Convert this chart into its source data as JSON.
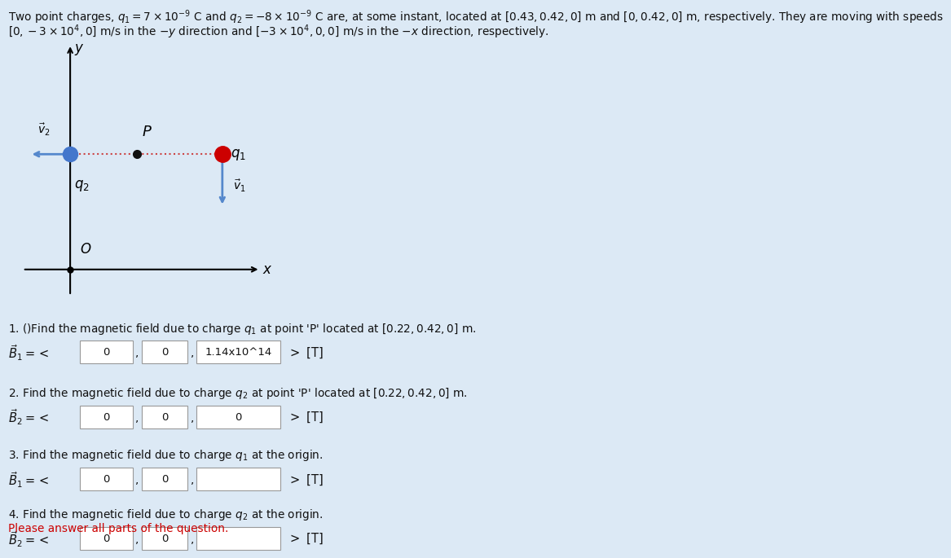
{
  "bg_color": "#dce9f5",
  "diagram_bg": "#ffffff",
  "header_text_line1": "Two point charges, $q_1 =7\\times10^{-9}$ C and $q_2 = -8\\times10^{-9}$ C are, at some instant, located at $[0.43,0.42,0]$ m and $[0,0.42,0]$ m, respectively. They are moving with speeds",
  "header_text_line2": "$[0,-3\\times10^4,0]$ m/s in the $-y$ direction and $[-3\\times10^4,0,0]$ m/s in the $-x$ direction, respectively.",
  "q1_color": "#cc0000",
  "q2_color": "#4477cc",
  "P_color": "#111111",
  "arrow_color": "#5588cc",
  "dotted_color": "#cc4444",
  "q1_label": "$q_1$",
  "q2_label": "$q_2$",
  "P_label": "$P$",
  "v1_label": "$\\vec{v}_1$",
  "v2_label": "$\\vec{v}_2$",
  "O_label": "$O$",
  "x_label": "$x$",
  "y_label": "$y$",
  "questions": [
    {
      "text": "1. ()Find the magnetic field due to charge $q_1$ at point 'P' located at $[0.22,0.42,0]$ m.",
      "label": "$\\vec{B}_1 = <$",
      "fields": [
        "0",
        "0",
        "1.14x10^14"
      ],
      "suffix": "$>$ [T]"
    },
    {
      "text": "2. Find the magnetic field due to charge $q_2$ at point 'P' located at $[0.22,0.42,0]$ m.",
      "label": "$\\vec{B}_2 = <$",
      "fields": [
        "0",
        "0",
        "0"
      ],
      "suffix": "$>$ [T]"
    },
    {
      "text": "3. Find the magnetic field due to charge $q_1$ at the origin.",
      "label": "$\\vec{B}_1 = <$",
      "fields": [
        "0",
        "0",
        ""
      ],
      "suffix": "$>$ [T]"
    },
    {
      "text": "4. Find the magnetic field due to charge $q_2$ at the origin.",
      "label": "$\\vec{B}_2 = <$",
      "fields": [
        "0",
        "0",
        ""
      ],
      "suffix": "$>$ [T]"
    }
  ],
  "please_text": "Please answer all parts of the question.",
  "please_color": "#cc0000"
}
